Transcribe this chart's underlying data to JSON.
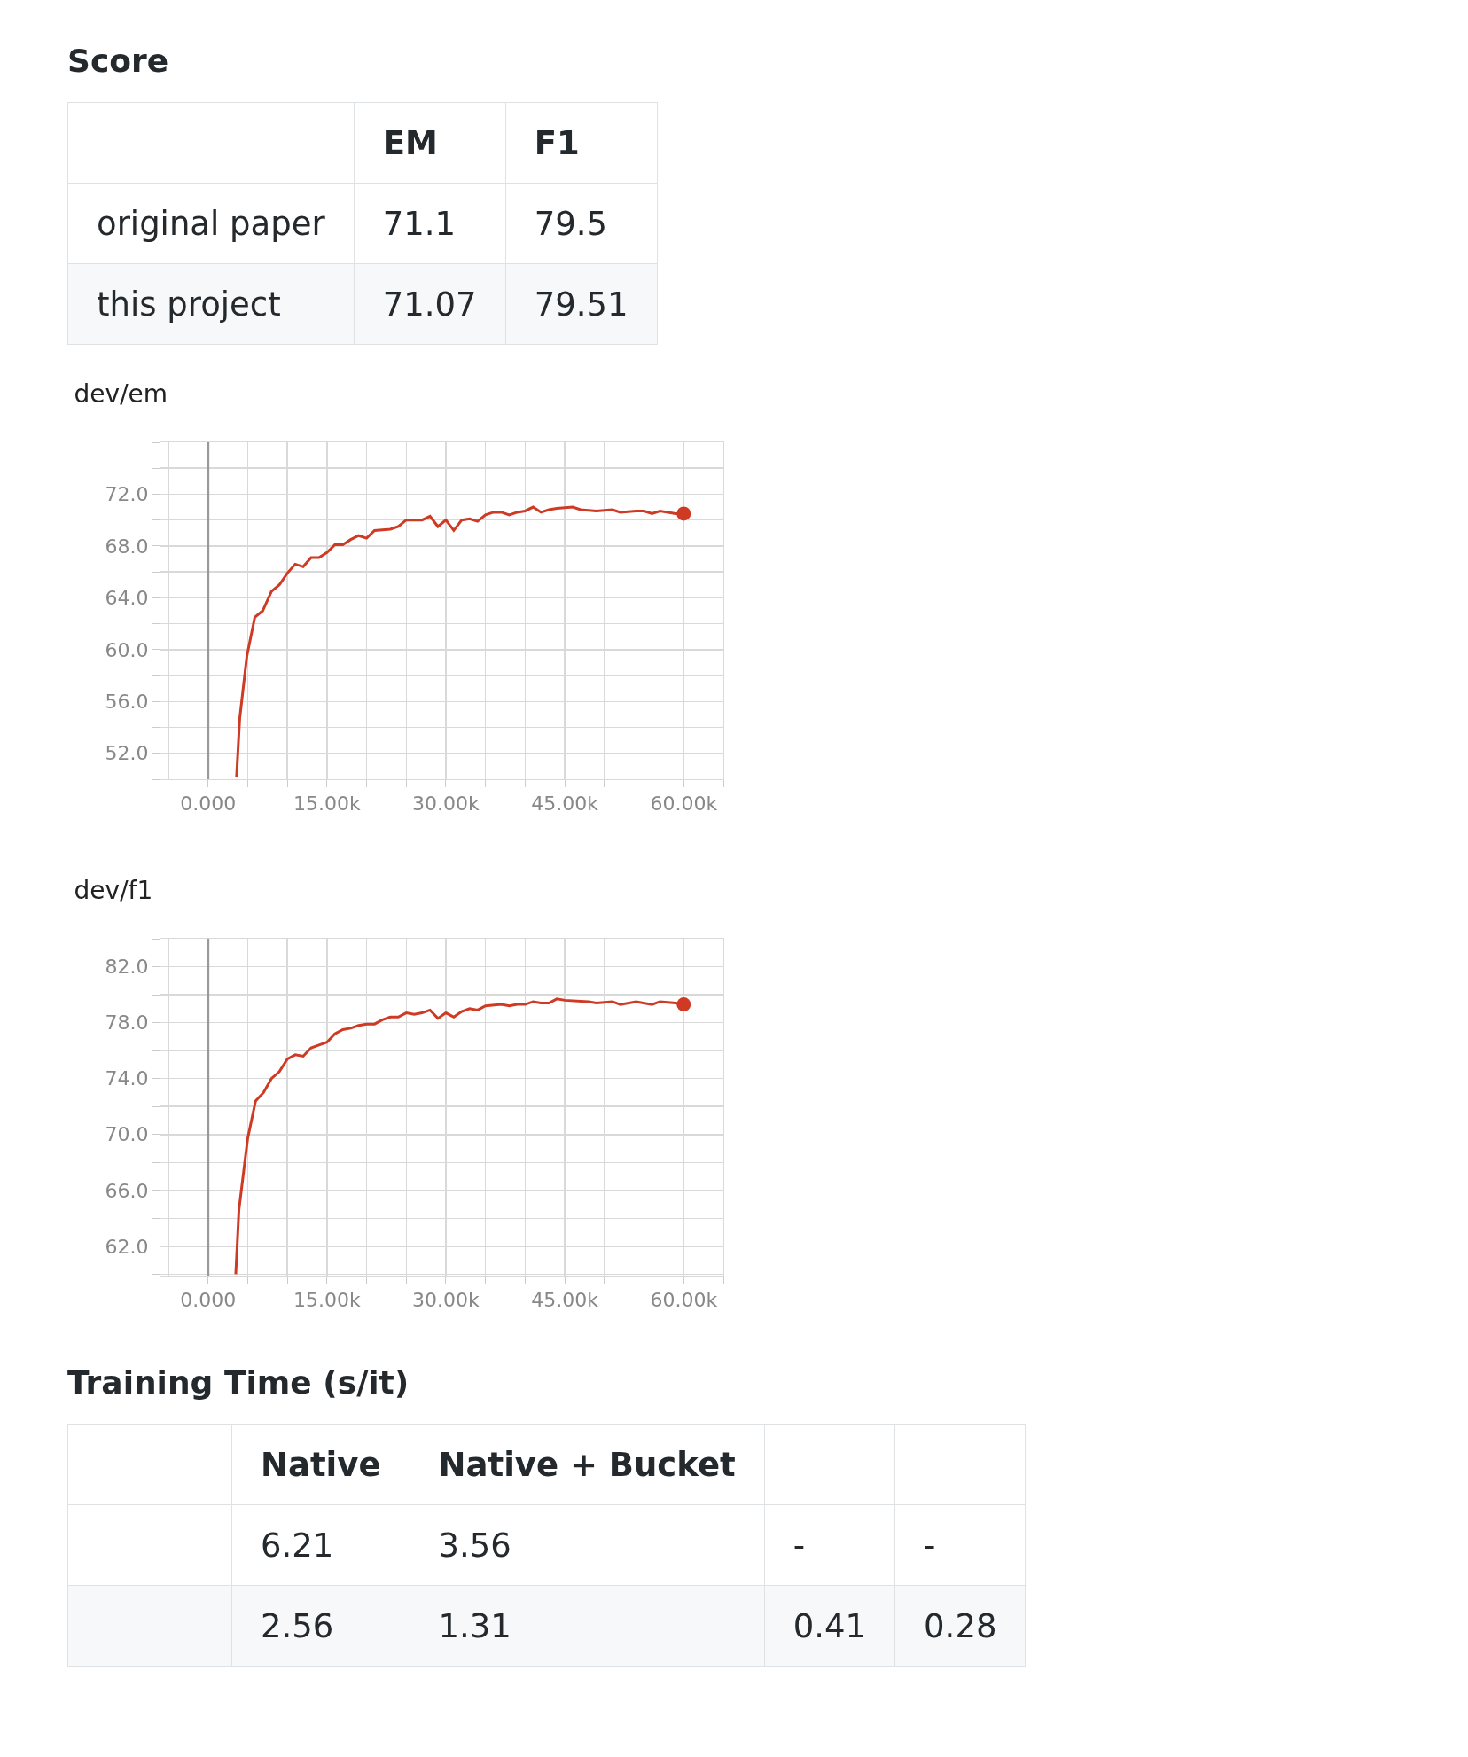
{
  "chart_data": [
    {
      "type": "other",
      "title": "Score",
      "categories": [
        "EM",
        "F1"
      ],
      "y_categories": [
        "original paper",
        "this project"
      ],
      "cell_labels": [
        [
          "71.1",
          "79.5"
        ],
        [
          "71.07",
          "79.51"
        ]
      ]
    },
    {
      "type": "line",
      "title": "dev/em",
      "grid": true,
      "xlim": [
        -6000,
        65000
      ],
      "ylim": [
        50,
        76
      ],
      "xticks": [
        {
          "value": -5000,
          "label": null
        },
        {
          "value": 0,
          "label": "0.000"
        },
        {
          "value": 5000,
          "label": null
        },
        {
          "value": 10000,
          "label": null
        },
        {
          "value": 15000,
          "label": "15.00k"
        },
        {
          "value": 20000,
          "label": null
        },
        {
          "value": 25000,
          "label": null
        },
        {
          "value": 30000,
          "label": "30.00k"
        },
        {
          "value": 35000,
          "label": null
        },
        {
          "value": 40000,
          "label": null
        },
        {
          "value": 45000,
          "label": "45.00k"
        },
        {
          "value": 50000,
          "label": null
        },
        {
          "value": 55000,
          "label": null
        },
        {
          "value": 60000,
          "label": "60.00k"
        },
        {
          "value": 65000,
          "label": null
        }
      ],
      "yticks": [
        {
          "value": 50,
          "label": null
        },
        {
          "value": 52,
          "label": "52.0"
        },
        {
          "value": 54,
          "label": null
        },
        {
          "value": 56,
          "label": "56.0"
        },
        {
          "value": 58,
          "label": null
        },
        {
          "value": 60,
          "label": "60.0"
        },
        {
          "value": 62,
          "label": null
        },
        {
          "value": 64,
          "label": "64.0"
        },
        {
          "value": 66,
          "label": null
        },
        {
          "value": 68,
          "label": "68.0"
        },
        {
          "value": 70,
          "label": null
        },
        {
          "value": 72,
          "label": "72.0"
        },
        {
          "value": 74,
          "label": null
        },
        {
          "value": 76,
          "label": null
        }
      ],
      "ref_lines": [
        {
          "axis": "x",
          "value": 0,
          "color": "#999999"
        }
      ],
      "series": [
        {
          "type": "line",
          "color": "#cf3a24",
          "x": [
            3600,
            4000,
            4900,
            5900,
            6900,
            8000,
            9000,
            10000,
            11000,
            12000,
            13000,
            14000,
            15000,
            16000,
            17000,
            18000,
            19000,
            20000,
            21000,
            23000,
            24000,
            25000,
            27000,
            28000,
            29000,
            30000,
            31000,
            32000,
            33000,
            34000,
            35000,
            36000,
            37000,
            38000,
            39000,
            40000,
            41000,
            42000,
            43000,
            44000,
            46000,
            47000,
            49000,
            51000,
            52000,
            54000,
            55000,
            56000,
            57000,
            59000,
            60000
          ],
          "values": [
            50.2,
            54.7,
            59.5,
            62.5,
            63.0,
            64.5,
            65.0,
            65.9,
            66.6,
            66.4,
            67.1,
            67.1,
            67.5,
            68.1,
            68.1,
            68.5,
            68.8,
            68.6,
            69.2,
            69.3,
            69.5,
            70.0,
            70.0,
            70.3,
            69.5,
            70.0,
            69.2,
            70.0,
            70.1,
            69.9,
            70.4,
            70.6,
            70.6,
            70.4,
            70.6,
            70.7,
            71.0,
            70.6,
            70.8,
            70.9,
            71.0,
            70.8,
            70.7,
            70.8,
            70.6,
            70.7,
            70.7,
            70.5,
            70.7,
            70.5,
            70.5
          ]
        },
        {
          "type": "scatter",
          "marker": "circle",
          "color": "#cf3a24",
          "x": [
            60000
          ],
          "values": [
            70.5
          ]
        }
      ]
    },
    {
      "type": "line",
      "title": "dev/f1",
      "grid": true,
      "xlim": [
        -6000,
        65000
      ],
      "ylim": [
        59.9,
        84
      ],
      "xticks": [
        {
          "value": -5000,
          "label": null
        },
        {
          "value": 0,
          "label": "0.000"
        },
        {
          "value": 5000,
          "label": null
        },
        {
          "value": 10000,
          "label": null
        },
        {
          "value": 15000,
          "label": "15.00k"
        },
        {
          "value": 20000,
          "label": null
        },
        {
          "value": 25000,
          "label": null
        },
        {
          "value": 30000,
          "label": "30.00k"
        },
        {
          "value": 35000,
          "label": null
        },
        {
          "value": 40000,
          "label": null
        },
        {
          "value": 45000,
          "label": "45.00k"
        },
        {
          "value": 50000,
          "label": null
        },
        {
          "value": 55000,
          "label": null
        },
        {
          "value": 60000,
          "label": "60.00k"
        },
        {
          "value": 65000,
          "label": null
        }
      ],
      "yticks": [
        {
          "value": 60,
          "label": null
        },
        {
          "value": 62,
          "label": "62.0"
        },
        {
          "value": 64,
          "label": null
        },
        {
          "value": 66,
          "label": "66.0"
        },
        {
          "value": 68,
          "label": null
        },
        {
          "value": 70,
          "label": "70.0"
        },
        {
          "value": 72,
          "label": null
        },
        {
          "value": 74,
          "label": "74.0"
        },
        {
          "value": 76,
          "label": null
        },
        {
          "value": 78,
          "label": "78.0"
        },
        {
          "value": 80,
          "label": null
        },
        {
          "value": 82,
          "label": "82.0"
        },
        {
          "value": 84,
          "label": null
        }
      ],
      "ref_lines": [
        {
          "axis": "x",
          "value": 0,
          "color": "#999999"
        }
      ],
      "series": [
        {
          "type": "line",
          "color": "#cf3a24",
          "x": [
            3500,
            3900,
            5000,
            6000,
            7000,
            8000,
            9000,
            10000,
            11000,
            12000,
            13000,
            14000,
            15000,
            16000,
            17000,
            18000,
            19000,
            20000,
            21000,
            22000,
            23000,
            24000,
            25000,
            26000,
            27000,
            28000,
            29000,
            30000,
            31000,
            32000,
            33000,
            34000,
            35000,
            37000,
            38000,
            39000,
            40000,
            41000,
            42000,
            43000,
            44000,
            45000,
            48000,
            49000,
            51000,
            52000,
            54000,
            56000,
            57000,
            59000,
            60000
          ],
          "values": [
            60.0,
            64.6,
            69.7,
            72.4,
            73.0,
            74.0,
            74.5,
            75.4,
            75.7,
            75.6,
            76.2,
            76.4,
            76.6,
            77.2,
            77.5,
            77.6,
            77.8,
            77.9,
            77.9,
            78.2,
            78.4,
            78.4,
            78.7,
            78.6,
            78.7,
            78.9,
            78.3,
            78.7,
            78.4,
            78.8,
            79.0,
            78.9,
            79.2,
            79.3,
            79.2,
            79.3,
            79.3,
            79.5,
            79.4,
            79.4,
            79.7,
            79.6,
            79.5,
            79.4,
            79.5,
            79.3,
            79.5,
            79.3,
            79.5,
            79.4,
            79.3
          ]
        },
        {
          "type": "scatter",
          "marker": "circle",
          "color": "#cf3a24",
          "x": [
            60000
          ],
          "values": [
            79.3
          ]
        }
      ]
    },
    {
      "type": "other",
      "title": "Training Time (s/it)",
      "categories": [
        "Native",
        "Native + Bucket",
        null,
        null
      ],
      "y_categories": [
        null,
        null
      ],
      "cell_labels": [
        [
          "6.21",
          "3.56",
          "-",
          "-"
        ],
        [
          "2.56",
          "1.31",
          "0.41",
          "0.28"
        ]
      ]
    }
  ]
}
